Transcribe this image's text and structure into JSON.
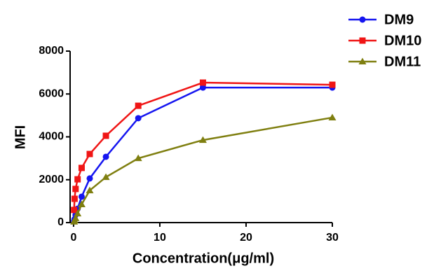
{
  "chart_data": {
    "type": "line",
    "xlabel": "Concentration(μg/ml)",
    "ylabel": "MFI",
    "x": [
      0.0586,
      0.117,
      0.234,
      0.469,
      0.9375,
      1.875,
      3.75,
      7.5,
      15,
      30
    ],
    "series": [
      {
        "name": "DM9",
        "color": "#1515f0",
        "marker": "circle",
        "values": [
          70,
          160,
          360,
          650,
          1210,
          2060,
          3070,
          4870,
          6300,
          6300
        ]
      },
      {
        "name": "DM10",
        "color": "#f01515",
        "marker": "square",
        "values": [
          590,
          1110,
          1570,
          2020,
          2550,
          3200,
          4050,
          5450,
          6530,
          6430
        ]
      },
      {
        "name": "DM11",
        "color": "#7f7f10",
        "marker": "triangle",
        "values": [
          40,
          100,
          200,
          420,
          850,
          1500,
          2120,
          3000,
          3850,
          4900
        ]
      }
    ],
    "xlim": [
      -0.4,
      30
    ],
    "ylim": [
      0,
      8000
    ],
    "xticks": [
      0,
      10,
      20,
      30
    ],
    "yticks": [
      0,
      2000,
      4000,
      6000,
      8000
    ],
    "legend": "top-right"
  }
}
